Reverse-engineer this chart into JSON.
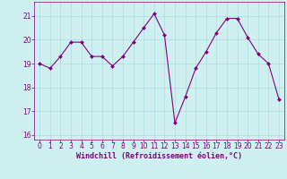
{
  "x": [
    0,
    1,
    2,
    3,
    4,
    5,
    6,
    7,
    8,
    9,
    10,
    11,
    12,
    13,
    14,
    15,
    16,
    17,
    18,
    19,
    20,
    21,
    22,
    23
  ],
  "y": [
    19.0,
    18.8,
    19.3,
    19.9,
    19.9,
    19.3,
    19.3,
    18.9,
    19.3,
    19.9,
    20.5,
    21.1,
    20.2,
    16.5,
    17.6,
    18.8,
    19.5,
    20.3,
    20.9,
    20.9,
    20.1,
    19.4,
    19.0,
    17.5
  ],
  "line_color": "#800080",
  "marker": "D",
  "marker_size": 2.0,
  "bg_color": "#cff0f0",
  "grid_color": "#aadddd",
  "xlabel": "Windchill (Refroidissement éolien,°C)",
  "xlabel_color": "#800080",
  "ylim": [
    15.8,
    21.6
  ],
  "xlim": [
    -0.5,
    23.5
  ],
  "yticks": [
    16,
    17,
    18,
    19,
    20,
    21
  ],
  "xticks": [
    0,
    1,
    2,
    3,
    4,
    5,
    6,
    7,
    8,
    9,
    10,
    11,
    12,
    13,
    14,
    15,
    16,
    17,
    18,
    19,
    20,
    21,
    22,
    23
  ],
  "tick_color": "#800080",
  "spine_color": "#800080",
  "xlabel_fontsize": 6.0,
  "tick_fontsize": 5.5,
  "linewidth": 0.8
}
